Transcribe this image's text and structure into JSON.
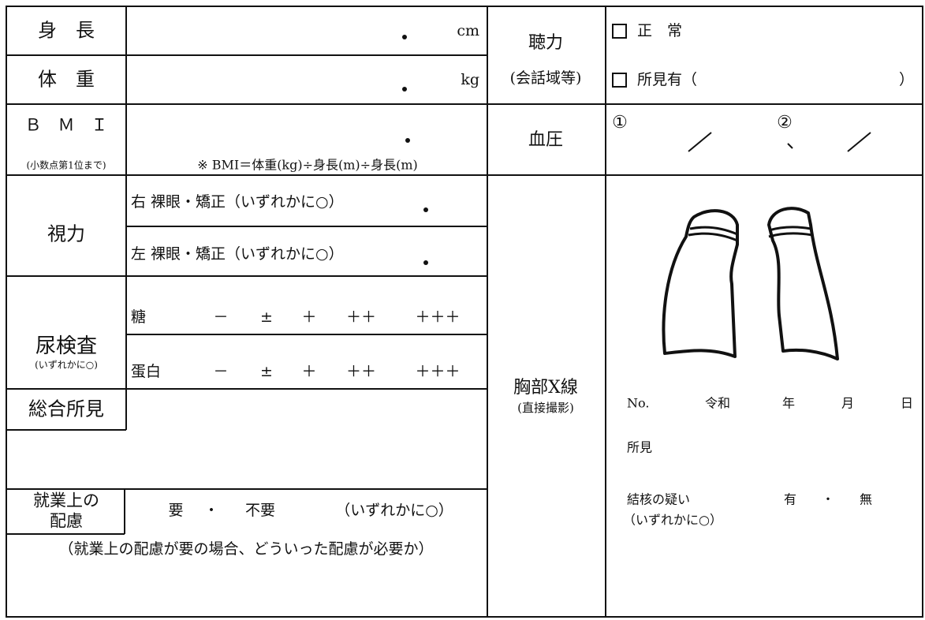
{
  "height": {
    "label": "身　長",
    "unit": "cm"
  },
  "weight": {
    "label": "体　重",
    "unit": "kg"
  },
  "bmi": {
    "label": "Ｂ　Ｍ　Ｉ",
    "note": "(小数点第1位まで)",
    "formula": "※ BMI＝体重(kg)÷身長(m)÷身長(m)"
  },
  "hearing": {
    "label": "聴力",
    "sublabel": "(会話域等)",
    "options": [
      "正　常",
      "所見有（"
    ],
    "close": "）"
  },
  "blood_pressure": {
    "label": "血圧",
    "markers": [
      "①",
      "②"
    ]
  },
  "vision": {
    "label": "視力",
    "rows": [
      "右 裸眼・矯正（いずれかに○）",
      "左 裸眼・矯正（いずれかに○）"
    ]
  },
  "urine": {
    "label": "尿検査",
    "note": "(いずれかに○)",
    "rows": [
      {
        "item": "糖",
        "grades": [
          "－",
          "±",
          "＋",
          "＋＋",
          "＋＋＋"
        ]
      },
      {
        "item": "蛋白",
        "grades": [
          "－",
          "±",
          "＋",
          "＋＋",
          "＋＋＋"
        ]
      }
    ]
  },
  "findings": {
    "label": "総合所見"
  },
  "work": {
    "label": [
      "就業上の",
      "配慮"
    ],
    "options": [
      "要",
      "・",
      "不要",
      "（いずれかに○）"
    ],
    "question": "（就業上の配慮が要の場合、どういった配慮が必要か）"
  },
  "xray": {
    "label": "胸部X線",
    "note": "(直接撮影)",
    "date": [
      "No.",
      "令和",
      "年",
      "月",
      "日"
    ],
    "findings": "所見",
    "tb": "結核の疑い",
    "tb_options": [
      "有",
      "・",
      "無"
    ],
    "tb_note": "（いずれかに○）"
  }
}
